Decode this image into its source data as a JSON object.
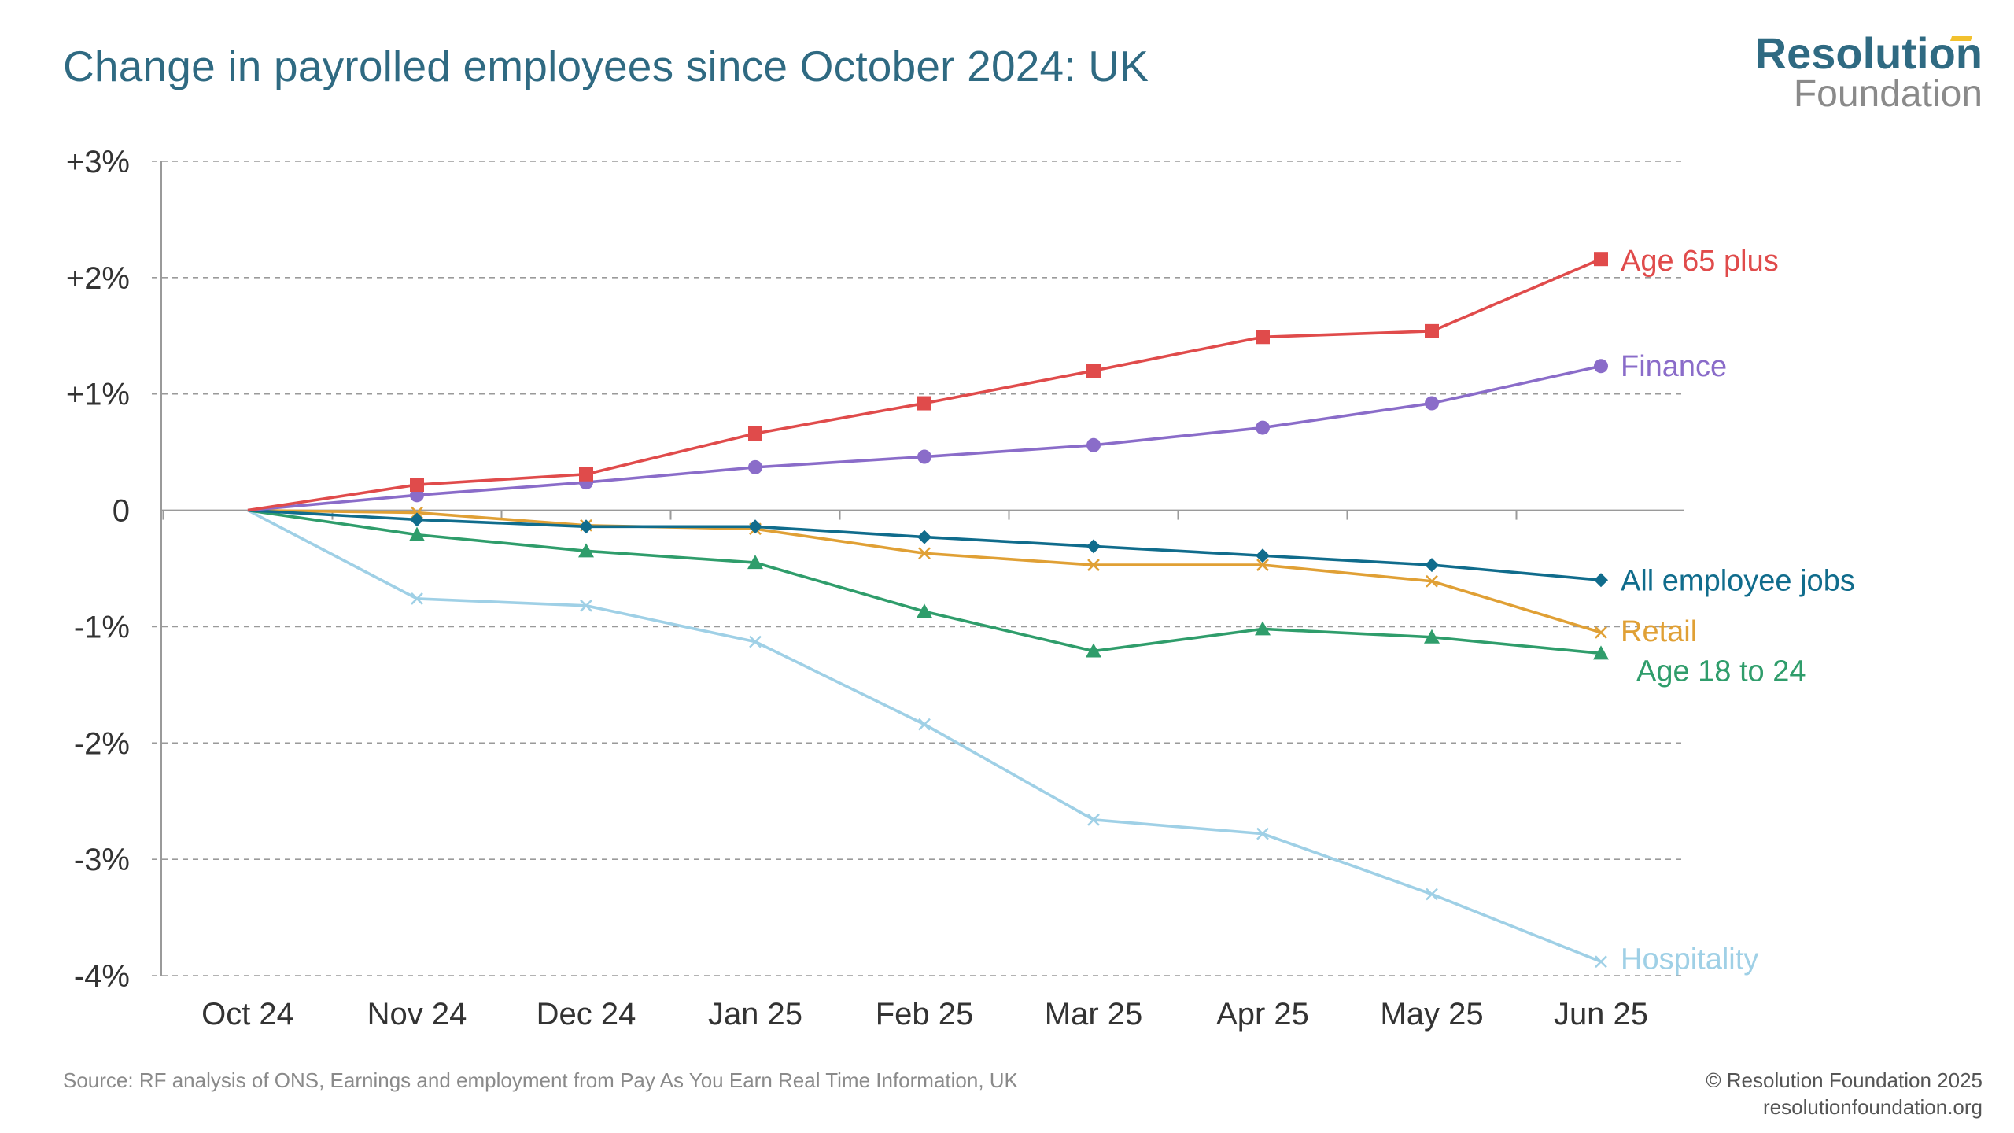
{
  "title": "Change in payrolled employees since October 2024: UK",
  "logo": {
    "top": "Resolution",
    "bottom": "Foundation"
  },
  "source": "Source: RF analysis of ONS, Earnings and employment from Pay As You Earn Real Time Information, UK",
  "credits": {
    "copyright": "© Resolution Foundation 2025",
    "url": "resolutionfoundation.org"
  },
  "colors": {
    "title": "#2f6a82",
    "grid": "#9a9a9a",
    "axis": "#9a9a9a",
    "text": "#333333"
  },
  "chart_data": {
    "type": "line",
    "title": "Change in payrolled employees since October 2024: UK",
    "xlabel": "",
    "ylabel": "",
    "categories": [
      "Oct 24",
      "Nov 24",
      "Dec 24",
      "Jan 25",
      "Feb 25",
      "Mar 25",
      "Apr 25",
      "May 25",
      "Jun 25"
    ],
    "ylim": [
      -4,
      3
    ],
    "yticks": [
      3,
      2,
      1,
      0,
      -1,
      -2,
      -3,
      -4
    ],
    "ytick_labels": [
      "+3%",
      "+2%",
      "+1%",
      "0",
      "-1%",
      "-2%",
      "-3%",
      "-4%"
    ],
    "grid": true,
    "legend": "inline labels at line ends",
    "series": [
      {
        "name": "Age 65 plus",
        "color": "#e04b4b",
        "marker": "square",
        "values": [
          0,
          0.22,
          0.31,
          0.66,
          0.92,
          1.2,
          1.49,
          1.54,
          2.16
        ]
      },
      {
        "name": "Finance",
        "color": "#8a6cc9",
        "marker": "circle",
        "values": [
          0,
          0.13,
          0.24,
          0.37,
          0.46,
          0.56,
          0.71,
          0.92,
          1.24
        ]
      },
      {
        "name": "All employee jobs",
        "color": "#106c8c",
        "marker": "diamond",
        "values": [
          0,
          -0.08,
          -0.14,
          -0.14,
          -0.23,
          -0.31,
          -0.39,
          -0.47,
          -0.6
        ]
      },
      {
        "name": "Retail",
        "color": "#e0a035",
        "marker": "x",
        "values": [
          0,
          -0.02,
          -0.13,
          -0.16,
          -0.37,
          -0.47,
          -0.47,
          -0.61,
          -1.05
        ]
      },
      {
        "name": "Age 18 to 24",
        "color": "#2f9d6b",
        "marker": "triangle",
        "values": [
          0,
          -0.21,
          -0.35,
          -0.45,
          -0.87,
          -1.21,
          -1.02,
          -1.09,
          -1.23
        ]
      },
      {
        "name": "Hospitality",
        "color": "#9fd0e6",
        "marker": "x",
        "values": [
          0,
          -0.76,
          -0.82,
          -1.13,
          -1.84,
          -2.66,
          -2.78,
          -3.3,
          -3.88
        ]
      }
    ]
  }
}
